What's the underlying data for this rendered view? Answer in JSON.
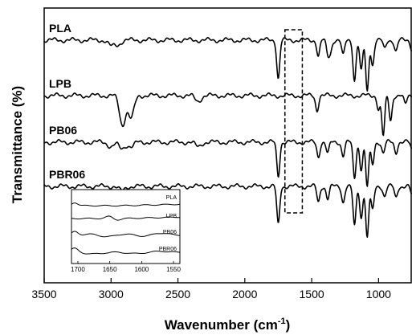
{
  "chart_data": {
    "type": "line",
    "title": "",
    "xlabel": "Wavenumber (cm",
    "xlabel_sup": "-1",
    "xlabel_close": ")",
    "ylabel": "Transmittance (%)",
    "xlim": [
      3500,
      750
    ],
    "x_reversed": true,
    "x_ticks": [
      3500,
      3000,
      2500,
      2000,
      1500,
      1000
    ],
    "y_ticks_shown": false,
    "grid": false,
    "legend": "labels above each trace",
    "highlight_box": {
      "x_range": [
        1700,
        1570
      ],
      "style": "dashed"
    },
    "series": [
      {
        "name": "PLA",
        "offset": 0,
        "peaks": [
          [
            3000,
            0.5
          ],
          [
            2950,
            0.4
          ],
          [
            1750,
            3.4
          ],
          [
            1450,
            1.4
          ],
          [
            1380,
            1.2
          ],
          [
            1360,
            1.0
          ],
          [
            1265,
            1.4
          ],
          [
            1180,
            3.6
          ],
          [
            1130,
            2.8
          ],
          [
            1085,
            4.6
          ],
          [
            1045,
            2.2
          ],
          [
            955,
            0.8
          ],
          [
            870,
            1.0
          ],
          [
            750,
            0.8
          ]
        ]
      },
      {
        "name": "LPB",
        "offset": 1,
        "peaks": [
          [
            2915,
            2.6
          ],
          [
            2850,
            2.0
          ],
          [
            2350,
            0.5
          ],
          [
            1460,
            1.3
          ],
          [
            1000,
            1.2
          ],
          [
            965,
            3.6
          ],
          [
            910,
            2.2
          ],
          [
            800,
            0.8
          ]
        ]
      },
      {
        "name": "PB06",
        "offset": 2,
        "peaks": [
          [
            3000,
            0.4
          ],
          [
            2920,
            0.6
          ],
          [
            2850,
            0.4
          ],
          [
            2350,
            0.4
          ],
          [
            1750,
            3.0
          ],
          [
            1450,
            1.3
          ],
          [
            1380,
            1.0
          ],
          [
            1265,
            1.2
          ],
          [
            1180,
            3.2
          ],
          [
            1130,
            2.4
          ],
          [
            1085,
            4.0
          ],
          [
            1045,
            2.0
          ],
          [
            965,
            1.0
          ],
          [
            870,
            0.9
          ],
          [
            750,
            0.7
          ]
        ]
      },
      {
        "name": "PBR06",
        "offset": 3,
        "peaks": [
          [
            2920,
            0.4
          ],
          [
            1750,
            3.4
          ],
          [
            1450,
            1.4
          ],
          [
            1380,
            1.1
          ],
          [
            1265,
            1.4
          ],
          [
            1180,
            3.6
          ],
          [
            1130,
            2.8
          ],
          [
            1085,
            4.6
          ],
          [
            1045,
            2.2
          ],
          [
            955,
            0.9
          ],
          [
            870,
            1.0
          ],
          [
            750,
            0.8
          ]
        ]
      }
    ],
    "inset": {
      "xlim": [
        1710,
        1540
      ],
      "x_ticks": [
        1700,
        1650,
        1600,
        1550
      ],
      "series": [
        "PLA",
        "LPB",
        "PB06",
        "PBR06"
      ]
    }
  }
}
